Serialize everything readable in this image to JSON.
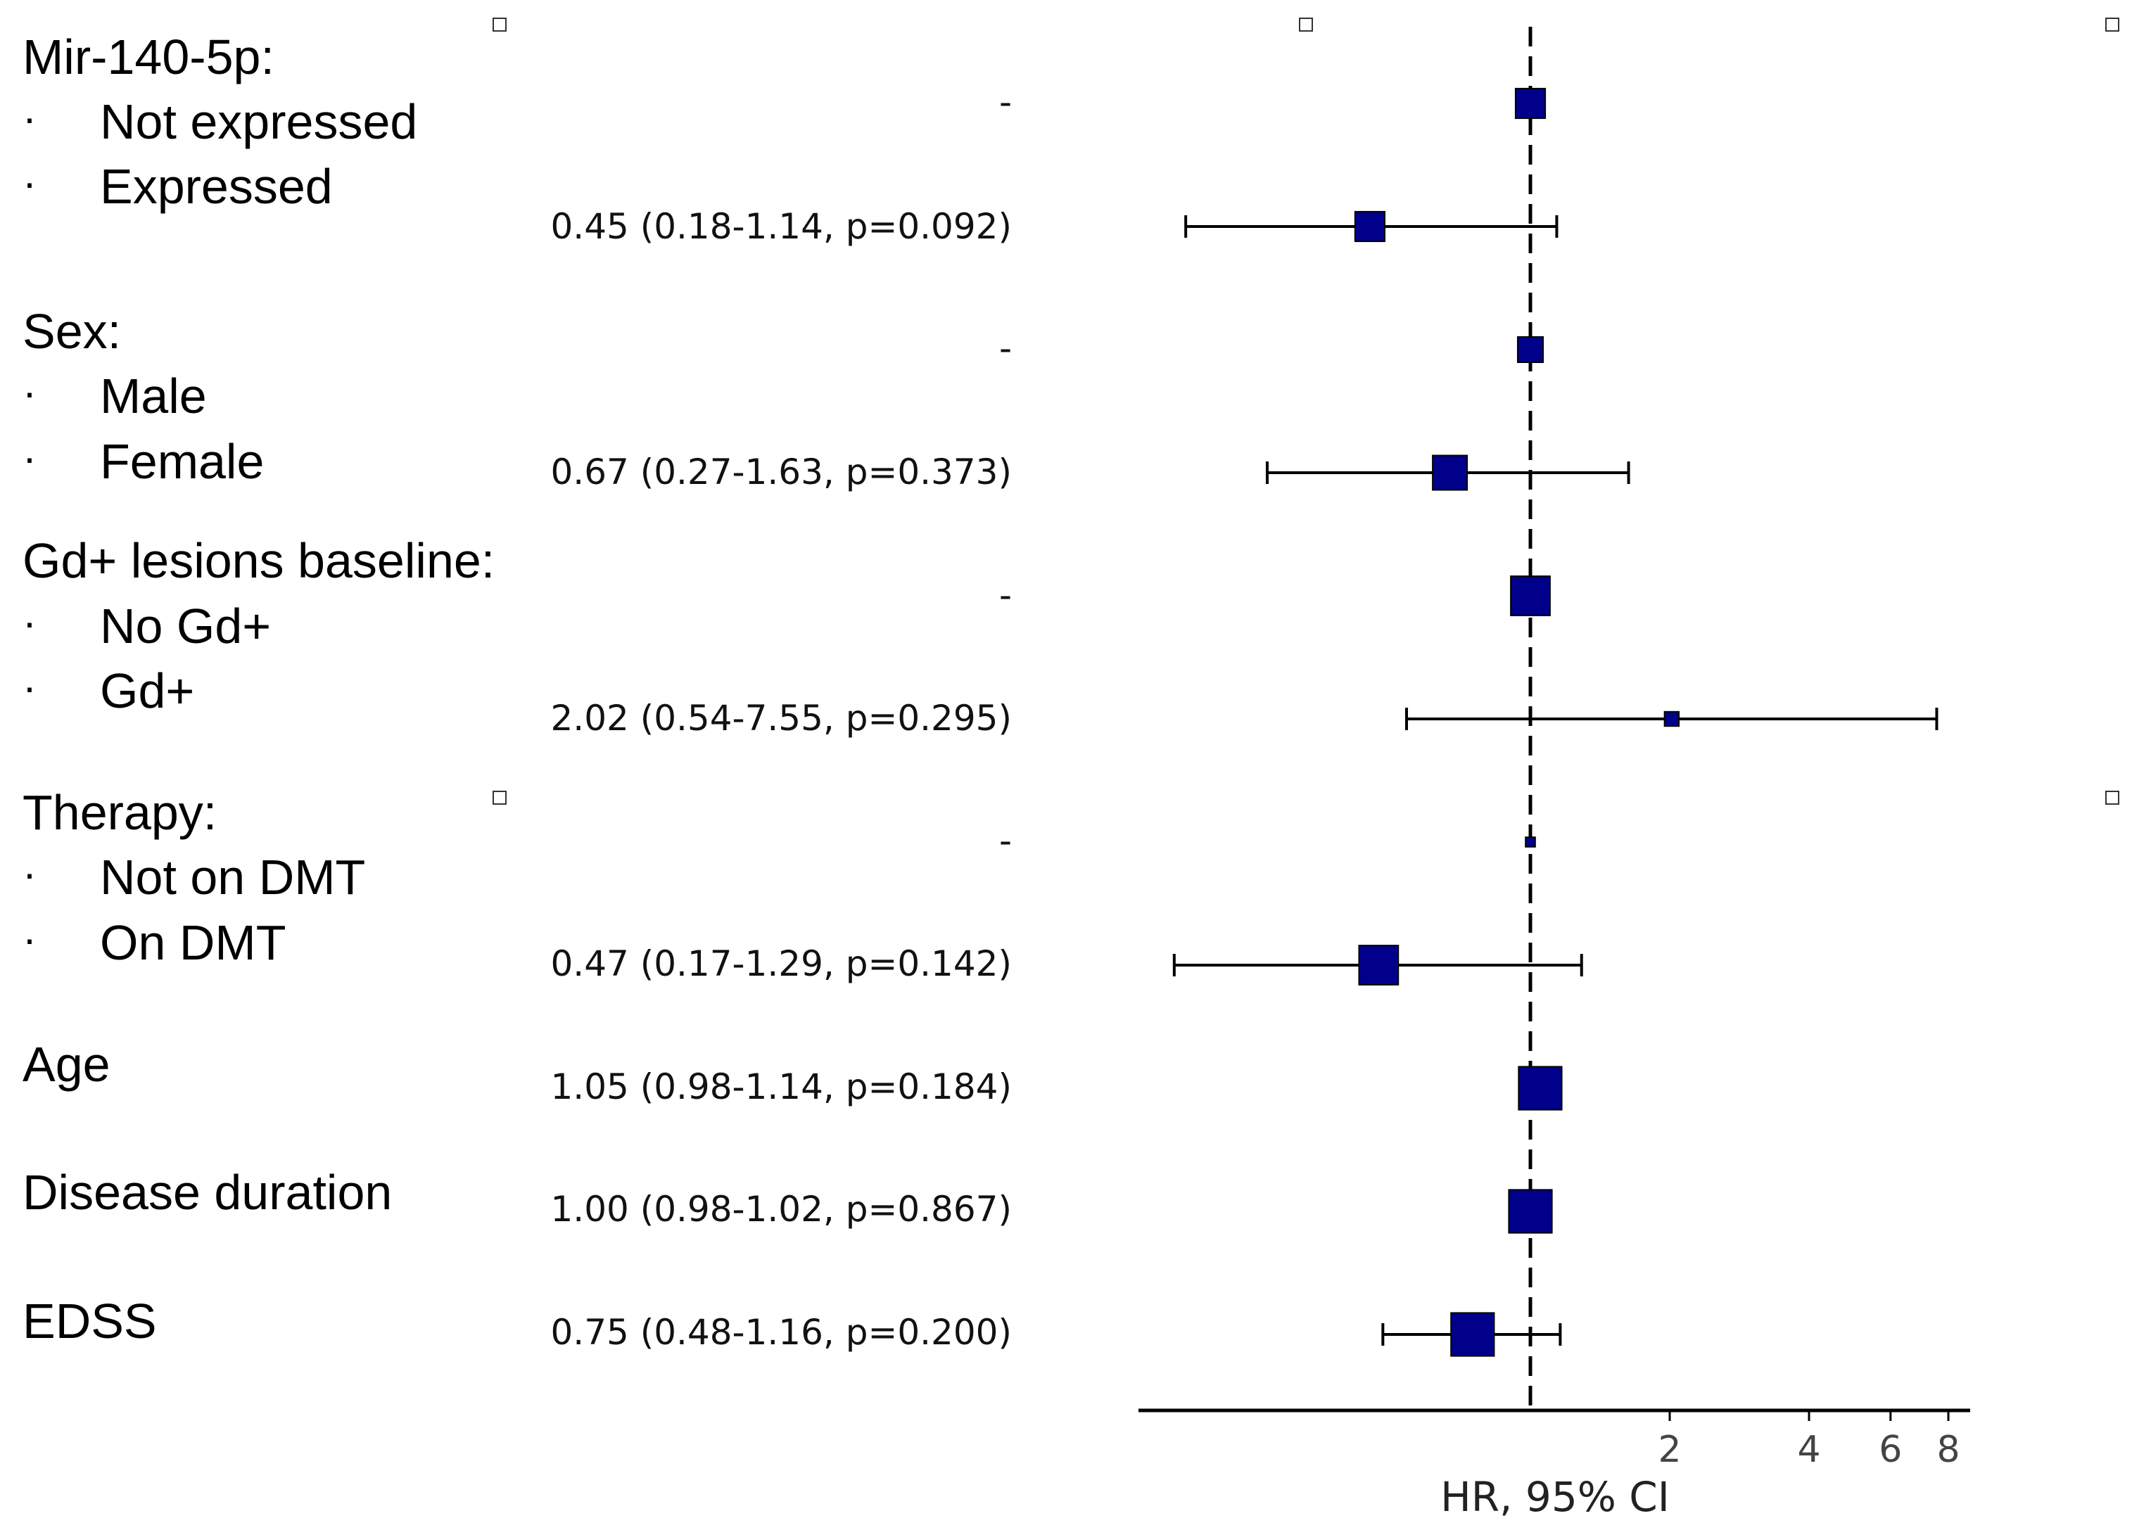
{
  "chart_data": {
    "type": "forest",
    "xlabel": "HR, 95% CI",
    "x_scale": "log",
    "reference_line": 1,
    "xlim": [
      0.1,
      9
    ],
    "ticks": [
      {
        "value": 2,
        "label": "2"
      },
      {
        "value": 4,
        "label": "4"
      },
      {
        "value": 6,
        "label": "6"
      },
      {
        "value": 8,
        "label": "8"
      }
    ],
    "colors": {
      "box": "#00008b",
      "line": "#000000"
    },
    "rows": [
      {
        "variable": "Mir-140-5p:",
        "level": "Not expressed",
        "stat": "-",
        "reference": true,
        "hr": 1,
        "box_weight": 0.62
      },
      {
        "variable": "",
        "level": "Expressed",
        "stat": "0.45 (0.18-1.14, p=0.092)",
        "reference": false,
        "hr": 0.45,
        "lower": 0.18,
        "upper": 1.14,
        "box_weight": 0.62
      },
      {
        "variable": "Sex:",
        "level": "Male",
        "stat": "-",
        "reference": true,
        "hr": 1,
        "box_weight": 0.53
      },
      {
        "variable": "",
        "level": "Female",
        "stat": "0.67 (0.27-1.63, p=0.373)",
        "reference": false,
        "hr": 0.67,
        "lower": 0.27,
        "upper": 1.63,
        "box_weight": 0.72
      },
      {
        "variable": "Gd+ lesions baseline:",
        "level": "No Gd+",
        "stat": "-",
        "reference": true,
        "hr": 1,
        "box_weight": 0.82
      },
      {
        "variable": "",
        "level": "Gd+",
        "stat": "2.02 (0.54-7.55, p=0.295)",
        "reference": false,
        "hr": 2.02,
        "lower": 0.54,
        "upper": 7.55,
        "box_weight": 0.3
      },
      {
        "variable": "Therapy:",
        "level": "Not on DMT",
        "stat": "-",
        "reference": true,
        "hr": 1,
        "box_weight": 0.2
      },
      {
        "variable": "",
        "level": "On DMT",
        "stat": "0.47 (0.17-1.29, p=0.142)",
        "reference": false,
        "hr": 0.47,
        "lower": 0.17,
        "upper": 1.29,
        "box_weight": 0.82
      },
      {
        "variable": "Age",
        "level": "",
        "stat": "1.05 (0.98-1.14, p=0.184)",
        "reference": false,
        "hr": 1.05,
        "lower": 0.98,
        "upper": 1.14,
        "box_weight": 0.9
      },
      {
        "variable": "Disease duration",
        "level": "",
        "stat": "1.00 (0.98-1.02, p=0.867)",
        "reference": false,
        "hr": 1.0,
        "lower": 0.98,
        "upper": 1.02,
        "box_weight": 0.9
      },
      {
        "variable": "EDSS",
        "level": "",
        "stat": "0.75 (0.48-1.16, p=0.200)",
        "reference": false,
        "hr": 0.75,
        "lower": 0.48,
        "upper": 1.16,
        "box_weight": 0.9
      }
    ]
  }
}
